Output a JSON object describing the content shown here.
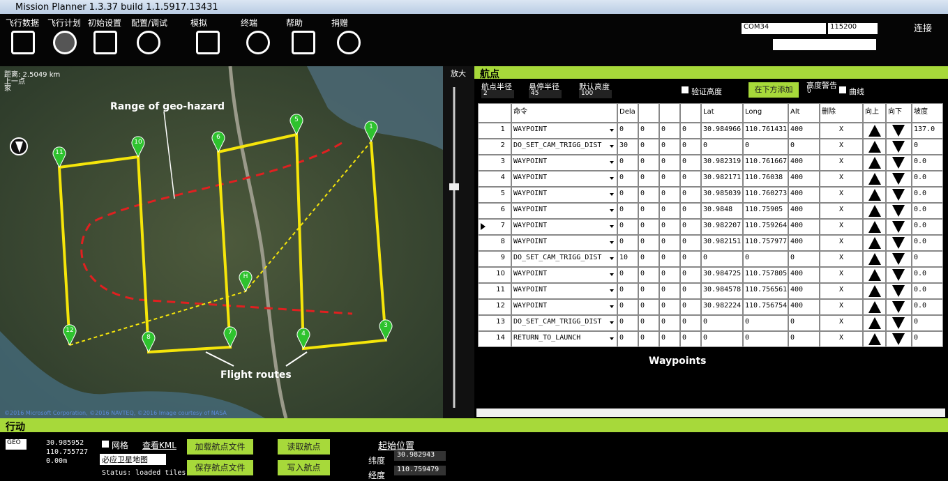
{
  "title_bar": {
    "title": "Mission Planner 1.3.37 build 1.1.5917.13431"
  },
  "menu": [
    "飞行数据",
    "飞行计划",
    "初始设置",
    "配置/调试",
    "模拟",
    "终端",
    "帮助",
    "捐赠"
  ],
  "connection": {
    "port": "COM34",
    "baud": "115200",
    "connect": "连接"
  },
  "map": {
    "distance": "距离: 2.5049 km",
    "prev": "上一点",
    "home": "家",
    "copyright": "©2016 Microsoft Corporation, ©2016 NAVTEQ, ©2016 Image courtesy of NASA",
    "annotations": [
      "Range of  geo-hazard",
      "Flight routes"
    ],
    "markers": [
      "1",
      "3",
      "4",
      "5",
      "6",
      "7",
      "8",
      "10",
      "11",
      "12",
      "H"
    ],
    "zoom": "放大"
  },
  "waypoints_panel": {
    "header": "航点",
    "wp_radius_label": "航点半径",
    "wp_radius": "2",
    "loiter_radius_label": "悬停半径",
    "loiter_radius": "45",
    "default_alt_label": "默认高度",
    "default_alt": "100",
    "verify_height": "验证高度",
    "add_below": "在下方添加",
    "alt_warn_label": "高度警告",
    "alt_warn": "0",
    "spline": "曲线",
    "columns": [
      null,
      "命令",
      "Dela",
      null,
      null,
      null,
      "Lat",
      "Long",
      "Alt",
      "删除",
      "向上",
      "向下",
      "坡度"
    ],
    "rows": [
      [
        "1",
        "WAYPOINT",
        "0",
        "0",
        "0",
        "0",
        "30.984966",
        "110.761431",
        "400",
        "X",
        "137.0"
      ],
      [
        "2",
        "DO_SET_CAM_TRIGG_DIST",
        "30",
        "0",
        "0",
        "0",
        "0",
        "0",
        "0",
        "X",
        "0"
      ],
      [
        "3",
        "WAYPOINT",
        "0",
        "0",
        "0",
        "0",
        "30.982319",
        "110.761667",
        "400",
        "X",
        "0.0"
      ],
      [
        "4",
        "WAYPOINT",
        "0",
        "0",
        "0",
        "0",
        "30.982171",
        "110.76038",
        "400",
        "X",
        "0.0"
      ],
      [
        "5",
        "WAYPOINT",
        "0",
        "0",
        "0",
        "0",
        "30.985039",
        "110.760273",
        "400",
        "X",
        "0.0"
      ],
      [
        "6",
        "WAYPOINT",
        "0",
        "0",
        "0",
        "0",
        "30.9848",
        "110.75905",
        "400",
        "X",
        "0.0"
      ],
      [
        "7",
        "WAYPOINT",
        "0",
        "0",
        "0",
        "0",
        "30.982207",
        "110.759264",
        "400",
        "X",
        "0.0"
      ],
      [
        "8",
        "WAYPOINT",
        "0",
        "0",
        "0",
        "0",
        "30.982151",
        "110.757977",
        "400",
        "X",
        "0.0"
      ],
      [
        "9",
        "DO_SET_CAM_TRIGG_DIST",
        "10",
        "0",
        "0",
        "0",
        "0",
        "0",
        "0",
        "X",
        "0"
      ],
      [
        "10",
        "WAYPOINT",
        "0",
        "0",
        "0",
        "0",
        "30.984725",
        "110.757805",
        "400",
        "X",
        "0.0"
      ],
      [
        "11",
        "WAYPOINT",
        "0",
        "0",
        "0",
        "0",
        "30.984578",
        "110.756561",
        "400",
        "X",
        "0.0"
      ],
      [
        "12",
        "WAYPOINT",
        "0",
        "0",
        "0",
        "0",
        "30.982224",
        "110.756754",
        "400",
        "X",
        "0.0"
      ],
      [
        "13",
        "DO_SET_CAM_TRIGG_DIST",
        "0",
        "0",
        "0",
        "0",
        "0",
        "0",
        "0",
        "X",
        "0"
      ],
      [
        "14",
        "RETURN_TO_LAUNCH",
        "0",
        "0",
        "0",
        "0",
        "0",
        "0",
        "0",
        "X",
        "0"
      ]
    ],
    "caption": "Waypoints"
  },
  "actions": {
    "header": "行动",
    "frame": "GEO",
    "lat": "30.985952",
    "lng": "110.755727",
    "alt": "0.00m",
    "grid": "网格",
    "view_kml": "查看KML",
    "map_type": "必应卫星地图",
    "status": "Status: loaded tiles",
    "buttons": [
      "加载航点文件",
      "保存航点文件",
      "读取航点",
      "写入航点"
    ],
    "home_title": "起始位置",
    "lat_label": "纬度",
    "home_lat": "30.982943",
    "lng_label": "经度",
    "home_lng": "110.759479"
  }
}
